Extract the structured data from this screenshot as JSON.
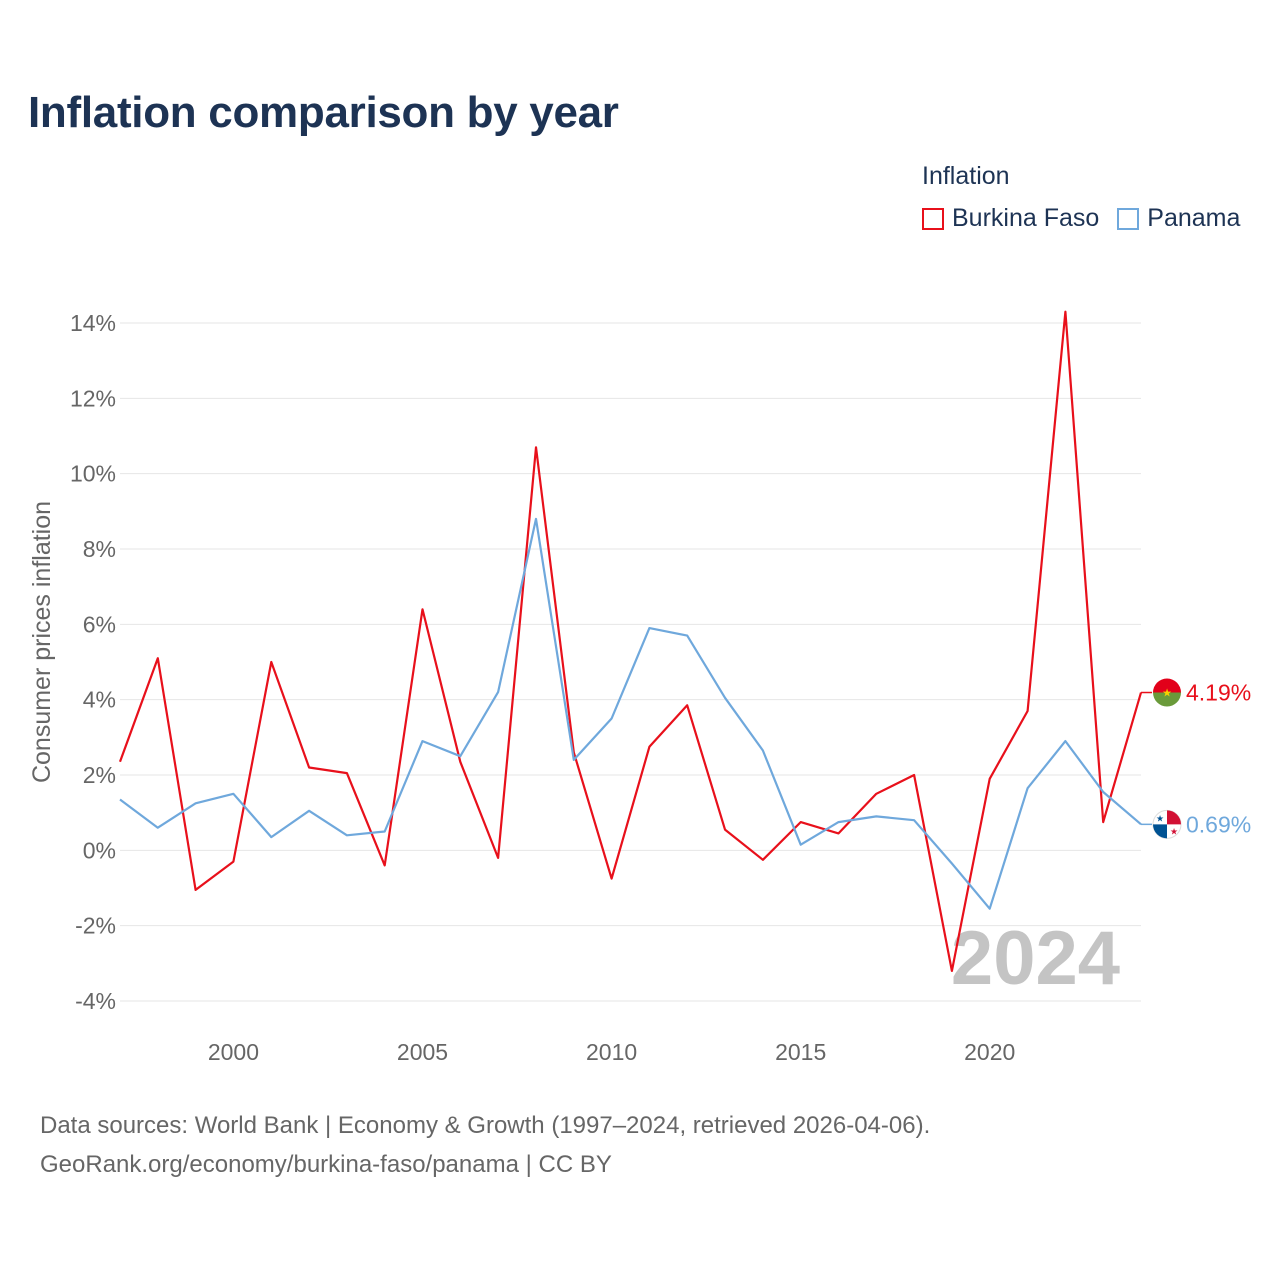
{
  "chart_data": {
    "type": "line",
    "title": "Inflation comparison by year",
    "legend_title": "Inflation",
    "ylabel": "Consumer prices inflation",
    "xlabel": "",
    "xlim": [
      1997,
      2024
    ],
    "ylim": [
      -4,
      14
    ],
    "x_ticks": [
      2000,
      2005,
      2010,
      2015,
      2020
    ],
    "y_ticks": [
      -4,
      -2,
      0,
      2,
      4,
      6,
      8,
      10,
      12,
      14
    ],
    "y_tick_labels": [
      "-4%",
      "-2%",
      "0%",
      "2%",
      "4%",
      "6%",
      "8%",
      "10%",
      "12%",
      "14%"
    ],
    "grid": true,
    "legend_position": "top-right",
    "year_watermark": "2024",
    "x": [
      1997,
      1998,
      1999,
      2000,
      2001,
      2002,
      2003,
      2004,
      2005,
      2006,
      2007,
      2008,
      2009,
      2010,
      2011,
      2012,
      2013,
      2014,
      2015,
      2016,
      2017,
      2018,
      2019,
      2020,
      2021,
      2022,
      2023,
      2024
    ],
    "series": [
      {
        "name": "Burkina Faso",
        "color": "#e8101b",
        "end_label": "4.19%",
        "flag_icon": "burkina-faso-flag-icon",
        "values": [
          2.35,
          5.1,
          -1.05,
          -0.3,
          5.0,
          2.2,
          2.05,
          -0.4,
          6.4,
          2.35,
          -0.2,
          10.7,
          2.6,
          -0.75,
          2.75,
          3.85,
          0.55,
          -0.25,
          0.75,
          0.45,
          1.5,
          2.0,
          -3.2,
          1.9,
          3.7,
          14.3,
          0.75,
          4.19
        ]
      },
      {
        "name": "Panama",
        "color": "#6fa8dc",
        "end_label": "0.69%",
        "flag_icon": "panama-flag-icon",
        "values": [
          1.35,
          0.6,
          1.25,
          1.5,
          0.35,
          1.05,
          0.4,
          0.5,
          2.9,
          2.5,
          4.2,
          8.8,
          2.4,
          3.5,
          5.9,
          5.7,
          4.05,
          2.65,
          0.15,
          0.75,
          0.9,
          0.8,
          -0.35,
          -1.55,
          1.65,
          2.9,
          1.55,
          0.69
        ]
      }
    ]
  },
  "source": {
    "line1": "Data sources: World Bank | Economy & Growth (1997–2024, retrieved 2026-04-06).",
    "line2": "GeoRank.org/economy/burkina-faso/panama | CC BY"
  }
}
